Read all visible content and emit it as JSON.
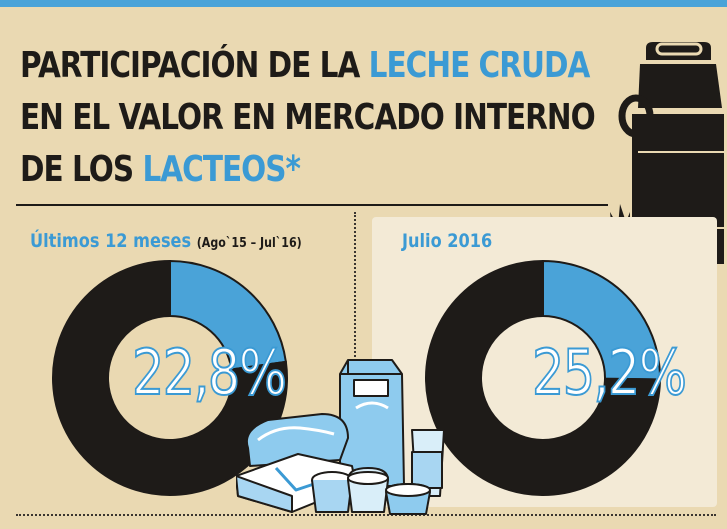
{
  "title": {
    "line1_prefix": "PARTICIPACIÓN DE LA ",
    "line1_highlight": "LECHE CRUDA",
    "line2": "EN EL VALOR EN MERCADO INTERNO",
    "line3_prefix": "DE LOS ",
    "line3_highlight": "LACTEOS*"
  },
  "colors": {
    "accent": "#3b9ad4",
    "dark": "#1e1b18",
    "background": "#ead9b2",
    "panel": "#f3ead6"
  },
  "icons": [
    "milk-can-icon",
    "dairy-products-illustration"
  ],
  "chart_data": [
    {
      "type": "pie",
      "title": "Últimos 12 meses",
      "subtitle": "(Ago`15 – Jul`16)",
      "label": "22,8%",
      "values": [
        22.8,
        77.2
      ],
      "colors": [
        "#4aa3d8",
        "#1e1b18"
      ]
    },
    {
      "type": "pie",
      "title": "Julio 2016",
      "subtitle": "",
      "label": "25,2%",
      "values": [
        25.2,
        74.8
      ],
      "colors": [
        "#4aa3d8",
        "#1e1b18"
      ]
    }
  ]
}
